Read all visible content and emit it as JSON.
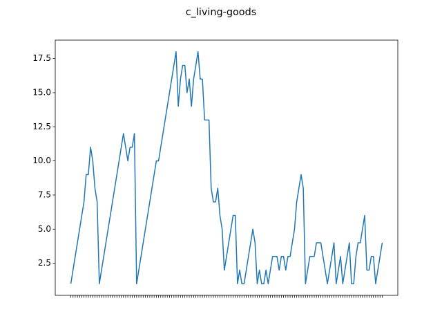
{
  "chart_data": {
    "type": "line",
    "title": "c_living-goods",
    "categories": [
      null,
      null,
      null,
      null,
      null,
      null,
      null,
      null,
      null,
      null,
      null,
      null,
      null,
      null,
      null,
      null,
      null,
      null,
      null,
      null,
      null,
      null,
      null,
      null,
      null,
      null,
      null,
      null,
      null,
      null,
      null,
      null,
      null,
      null,
      null,
      null,
      null,
      null,
      null,
      null,
      null,
      null,
      null,
      null,
      null,
      null,
      null,
      null,
      null,
      null,
      null,
      null,
      null,
      null,
      null,
      null,
      null,
      null,
      null,
      null,
      null,
      null,
      null,
      null,
      null,
      null,
      null,
      null,
      null,
      null,
      null,
      null,
      null,
      null,
      null,
      null,
      null,
      null,
      null,
      null,
      null,
      null,
      null,
      null,
      null,
      null,
      null,
      null,
      null,
      null,
      null,
      null,
      null,
      null,
      null,
      null,
      null,
      null,
      null,
      null,
      null,
      null,
      null,
      null,
      null,
      null,
      null,
      null,
      null,
      null,
      null,
      null,
      null,
      null,
      null,
      null,
      null,
      null,
      null,
      null,
      null,
      null,
      null,
      null,
      null,
      null,
      null,
      null,
      null,
      null,
      null,
      null,
      null,
      null,
      null,
      null,
      null,
      null,
      null,
      null,
      null,
      null,
      null
    ],
    "values": [
      1,
      2,
      3,
      4,
      5,
      6,
      7,
      9,
      9,
      11,
      10,
      8,
      7,
      1,
      2,
      3,
      4,
      5,
      6,
      7,
      8,
      9,
      10,
      11,
      12,
      11,
      10,
      11,
      11,
      12,
      1,
      2,
      3,
      4,
      5,
      6,
      7,
      8,
      9,
      10,
      10,
      11,
      12,
      13,
      14,
      15,
      16,
      17,
      18,
      14,
      16,
      17,
      17,
      15,
      16,
      14,
      16,
      17,
      18,
      16,
      16,
      13,
      13,
      13,
      8,
      7,
      7,
      8,
      6,
      5,
      2,
      3,
      4,
      5,
      6,
      6,
      1,
      2,
      1,
      1,
      2,
      3,
      4,
      5,
      4,
      1,
      2,
      1,
      1,
      2,
      1,
      2,
      3,
      3,
      3,
      2,
      3,
      3,
      2,
      3,
      3,
      4,
      5,
      7,
      8,
      9,
      8,
      1,
      2,
      3,
      3,
      3,
      4,
      4,
      4,
      3,
      2,
      1,
      2,
      3,
      4,
      1,
      2,
      3,
      1,
      2,
      3,
      4,
      1,
      1,
      3,
      4,
      4,
      5,
      6,
      2,
      2,
      3,
      3,
      1,
      2,
      3,
      4
    ],
    "color": "#1f77b4",
    "ylim": [
      0.15,
      18.85
    ],
    "yticks": [
      2.5,
      {
        "value": 5,
        "label": "5.0"
      },
      7.5,
      {
        "value": 10,
        "label": "10.0"
      },
      12.5,
      {
        "value": 15,
        "label": "15.0"
      },
      17.5
    ],
    "grid": false
  }
}
